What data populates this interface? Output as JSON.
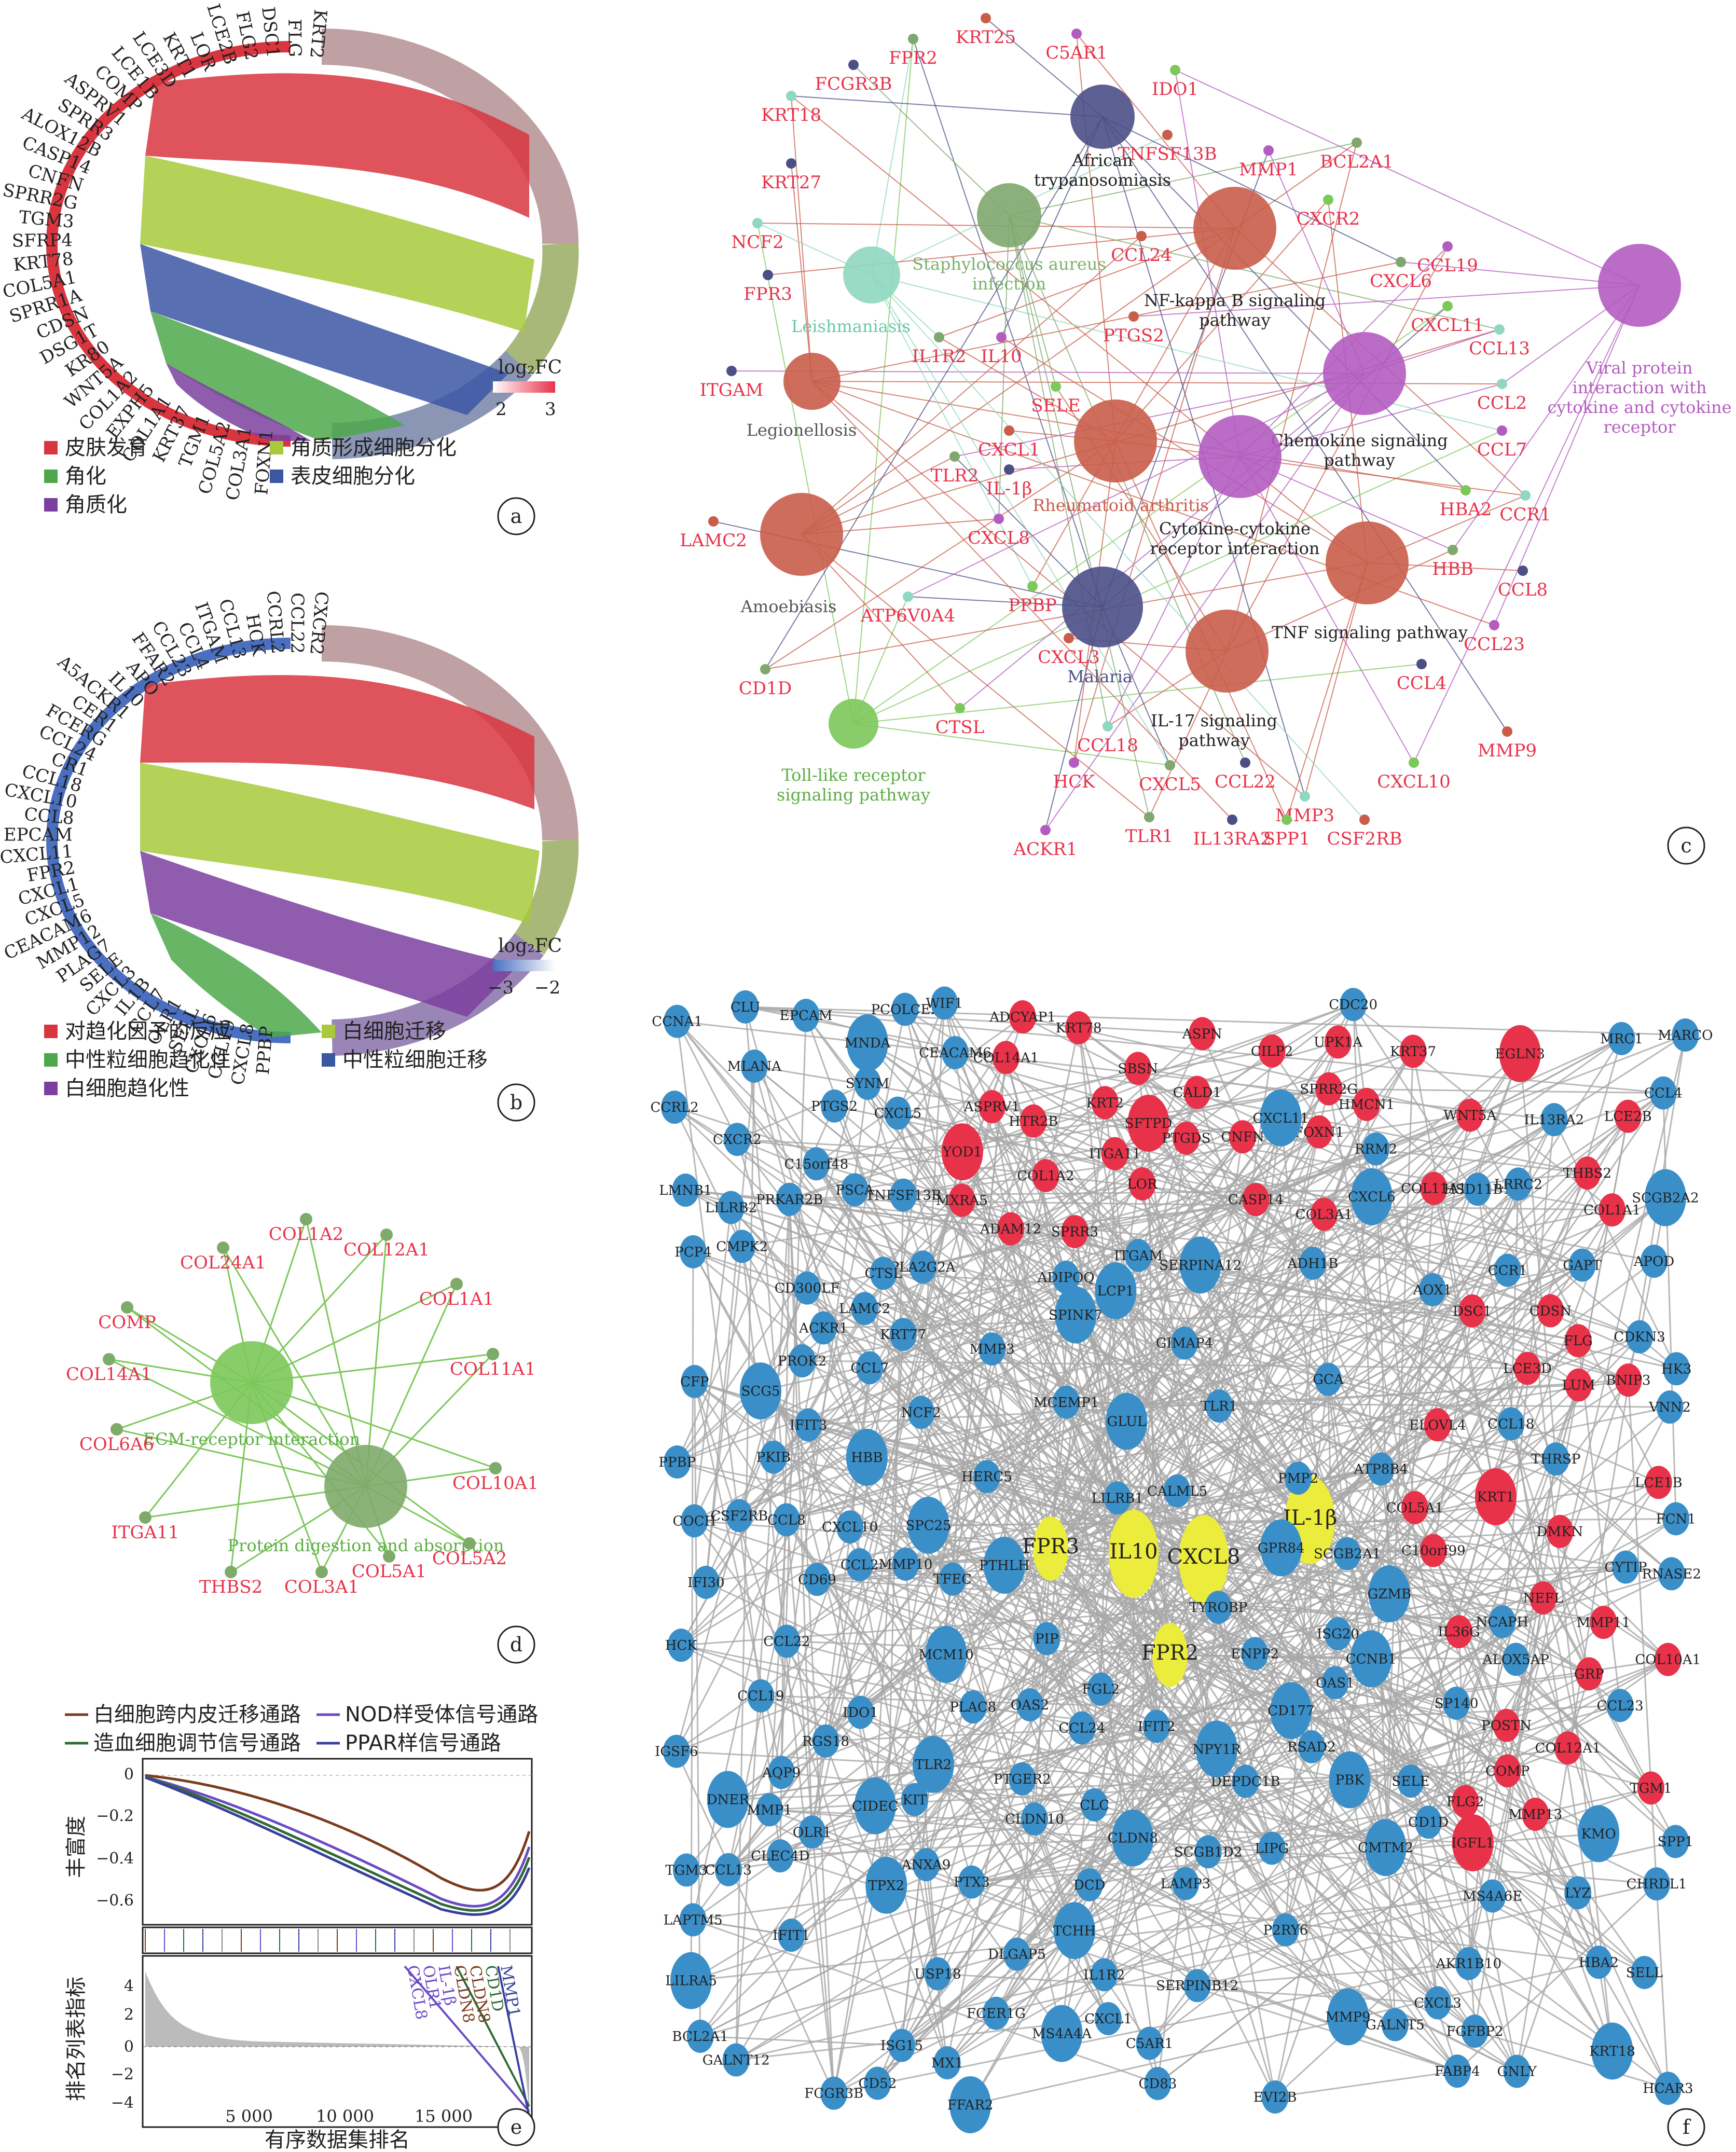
{
  "panels": {
    "a": {
      "letter": "a",
      "genes": [
        "KRT2",
        "FLG",
        "DSC1",
        "FLG2",
        "LCE2B",
        "LOR",
        "KRT1",
        "LCE3D",
        "LCE1B",
        "COMP",
        "ASPRV1",
        "SPRR3",
        "ALOX12B",
        "CASP14",
        "CNFN",
        "SPRR2G",
        "TGM3",
        "SFRP4",
        "KRT78",
        "COL5A1",
        "SPRR1A",
        "CDSN",
        "DSG1T",
        "KR80",
        "WNT5A",
        "COL1A2",
        "EXPH5",
        "COL1A1",
        "KRT37",
        "TGM1",
        "COL5A2",
        "COL3A1",
        "FOXN1"
      ],
      "colorbar_title": "log₂FC",
      "colorbar_ticks": [
        "2",
        "3"
      ],
      "legend": [
        {
          "label": "皮肤发育",
          "color": "#d8353f"
        },
        {
          "label": "角质形成细胞分化",
          "color": "#a7c93b"
        },
        {
          "label": "角化",
          "color": "#4ea84b"
        },
        {
          "label": "表皮细胞分化",
          "color": "#3b57a4"
        },
        {
          "label": "角质化",
          "color": "#7b3fa0"
        }
      ]
    },
    "b": {
      "letter": "b",
      "genes": [
        "CXCR2",
        "CCL22",
        "CCRL2",
        "HCK",
        "CCL13",
        "ITGAM",
        "CCL4",
        "CCL23",
        "FFAR2",
        "APO",
        "IL10",
        "A5ACKR1",
        "CER1",
        "FCERG",
        "CCL24",
        "CR1",
        "CCL18",
        "CXCL10",
        "CCL8",
        "EPCAM",
        "CXCL11",
        "FPR2",
        "CXCL1",
        "CXCL5",
        "CEACAM6",
        "MMP12",
        "PLAG7",
        "SELE",
        "CXCL3",
        "IL1B",
        "CCL7",
        "OLR1",
        "SELL",
        "CXCL6",
        "CCL19",
        "CXCL8",
        "PPBP"
      ],
      "colorbar_title": "log₂FC",
      "colorbar_ticks": [
        "−3",
        "−2"
      ],
      "legend": [
        {
          "label": "对趋化因子的反应",
          "color": "#d8353f"
        },
        {
          "label": "白细胞迁移",
          "color": "#a7c93b"
        },
        {
          "label": "中性粒细胞趋化性",
          "color": "#4ea84b"
        },
        {
          "label": "中性粒细胞迁移",
          "color": "#3b57a4"
        },
        {
          "label": "白细胞趋化性",
          "color": "#7b3fa0"
        }
      ]
    },
    "c": {
      "letter": "c",
      "pathways": [
        "African trypanosomiasis",
        "Staphylococcus aureus infection",
        "Leishmaniasis",
        "Legionellosis",
        "Amoebiasis",
        "NF-kappa B signaling pathway",
        "Viral protein interaction with cytokine and cytokine receptor",
        "Chemokine signaling pathway",
        "Rheumatoid arthritis",
        "Cytokine-cytokine receptor interaction",
        "Malaria",
        "TNF signaling pathway",
        "IL-17 signaling pathway",
        "Toll-like receptor signaling pathway"
      ],
      "genes": [
        "KRT25",
        "C5AR1",
        "FPR2",
        "FCGR3B",
        "IDO1",
        "KRT18",
        "TNFSF13B",
        "MMP1",
        "BCL2A1",
        "KRT27",
        "CXCR2",
        "NCF2",
        "CCL24",
        "CCL19",
        "CXCL6",
        "FPR3",
        "CXCL11",
        "CCL13",
        "PTGS2",
        "IL10",
        "IL1R2",
        "ITGAM",
        "SELE",
        "CCL2",
        "CXCL1",
        "CCL7",
        "TLR2",
        "IL-1β",
        "HBA2",
        "CCR1",
        "LAMC2",
        "CXCL8",
        "HBB",
        "CCL8",
        "PPBP",
        "ATP6V0A4",
        "CXCL3",
        "CCL23",
        "CD1D",
        "CCL4",
        "CTSL",
        "CCL18",
        "MMP9",
        "HCK",
        "CXCL5",
        "CCL22",
        "CXCL10",
        "MMP3",
        "CSF2RB",
        "ACKR1",
        "TLR1",
        "IL13RA2",
        "SPP1"
      ]
    },
    "d": {
      "letter": "d",
      "pathways": [
        "ECM-receptor interaction",
        "Protein digestion and absorption"
      ],
      "genes": [
        "COL24A1",
        "COL1A2",
        "COL12A1",
        "COMP",
        "COL1A1",
        "COL14A1",
        "COL11A1",
        "COL6A6",
        "COL10A1",
        "ITGA11",
        "COL5A2",
        "THBS2",
        "COL3A1",
        "COL5A1"
      ]
    },
    "e": {
      "letter": "e",
      "legend": [
        {
          "label": "白细胞跨内皮迁移通路",
          "color": "#7a3b1e"
        },
        {
          "label": "NOD样受体信号通路",
          "color": "#6a4bc4"
        },
        {
          "label": "造血细胞调节信号通路",
          "color": "#2f6b34"
        },
        {
          "label": "PPAR样信号通路",
          "color": "#3a3f9c"
        }
      ],
      "ylabel_top": "丰富度",
      "ylabel_bottom": "排名列表指标",
      "xlabel": "有序数据集排名",
      "x_ticks": [
        "5 000",
        "10 000",
        "15 000"
      ],
      "y_ticks_top": [
        "0",
        "−0.2",
        "−0.4",
        "−0.6"
      ],
      "y_ticks_bottom": [
        "4",
        "2",
        "0",
        "−2",
        "−4"
      ],
      "gene_labels": [
        "CXCL8",
        "OLR1",
        "IL-1β",
        "CLDN8",
        "CLDN8",
        "CD1D",
        "MMP1"
      ]
    },
    "f": {
      "letter": "f",
      "hub_genes": [
        "FPR3",
        "IL10",
        "CXCL8",
        "IL-1β",
        "FPR2"
      ],
      "red_nodes": [
        "UPK1A",
        "DMKN",
        "FLG",
        "KRT37",
        "KRT78",
        "C10orf99",
        "CNFN",
        "SPRR3",
        "SPRR2G",
        "KRT1",
        "FLG2",
        "HMCN1",
        "ELOVL4",
        "ASPRV1",
        "LCE1B",
        "CASP14",
        "SBSN",
        "LOR",
        "TGM1",
        "CDSN",
        "KRT2",
        "IGFL1",
        "LCE2B",
        "LCE3D",
        "DSC1",
        "GRP",
        "EGLN3",
        "BNIP3",
        "SFTPD",
        "HTR2B",
        "WNT5A",
        "THBS2",
        "ASPN",
        "COL14A1",
        "COL3A1",
        "MMP13",
        "COL1A1",
        "COL11A1",
        "COL10A1",
        "ADAM12",
        "POSTN",
        "COL5A1",
        "LUM",
        "COMP",
        "COL1A2",
        "ITGA11",
        "COL12A1",
        "PTGDS",
        "NEFL",
        "CALD1",
        "CILP2",
        "IL36G",
        "ADCYAP1",
        "YOD1",
        "MXRA5",
        "MMP11",
        "FOXN1"
      ],
      "blue_nodes": [
        "SCG5",
        "C15orf48",
        "PKIB",
        "SERPINB12",
        "CLDN10",
        "ANXA9",
        "PMP2",
        "IL13RA2",
        "CIDEC",
        "CLDN8",
        "SPINK7",
        "CALML5",
        "TGM3",
        "CMTM2",
        "CHRDL1",
        "KRT77",
        "THRSP",
        "HSD11B1",
        "ENPP2",
        "GLUL",
        "SERPINA12",
        "PLA2G2A",
        "KIT",
        "TCHH",
        "EPCAM",
        "CCNA1",
        "FFAR2",
        "PCP4",
        "SPC25",
        "DEPDC1B",
        "CDKN3",
        "PBK",
        "PROK2",
        "FABP4",
        "TNFSF13B",
        "PTX3",
        "ADIPOQ",
        "KRT18",
        "MMP3",
        "SPP1",
        "PTGER2",
        "NCAPH",
        "CCNB1",
        "CCL8",
        "CXCL6",
        "PTGS2",
        "PTHLH",
        "P2RY6",
        "CXCR2",
        "CXCL3",
        "SELE",
        "CCRL2",
        "HCAR3",
        "CCL13",
        "MMP9",
        "TPX2",
        "IFIT1",
        "NPY1R",
        "CDC20",
        "HERC5",
        "PRKAR2B",
        "MCM10",
        "ISG15",
        "CCL24",
        "CCL4",
        "CCL22",
        "CXCL1",
        "CCL2",
        "MMP1",
        "CCL23",
        "CFP",
        "DLGAP5",
        "RRM2",
        "LAMP3",
        "GZMB",
        "FGL2",
        "C5AR1",
        "MRC1",
        "SCGB2A2",
        "COCH",
        "CEACAM6",
        "NCF2",
        "MX1",
        "CXCL10",
        "CD83",
        "CXCL5",
        "CCL7",
        "PPBP",
        "IFIT2",
        "IDO1",
        "CCL19",
        "TLR2",
        "SELL",
        "CCL18",
        "ITGAM",
        "IL1R2",
        "OLR1",
        "LYZ",
        "MMP10",
        "CLU",
        "SP140",
        "APOD",
        "CMPK2",
        "LILRA5",
        "VNN2",
        "EVI2B",
        "BCL2A1",
        "LMNB1",
        "AOX1",
        "CD1D",
        "TYROBP",
        "HCK",
        "CSF2RB",
        "CXCL11",
        "CCR1",
        "ACKR1",
        "IGSF6",
        "MS4A6E",
        "KMO",
        "USP18",
        "ADH1B",
        "CLEC4D",
        "IFIT3",
        "TLR1",
        "GAPT",
        "ALOX5AP",
        "CD69",
        "LILRB2",
        "LIPG",
        "GNLY",
        "FCN1",
        "SCGB2A1",
        "FGFBP2",
        "PIP",
        "GALNT5",
        "DCD",
        "OAS2",
        "OAS1",
        "ISG20",
        "AQP9",
        "LAPTM5",
        "CD300LF",
        "FCER1G",
        "MNDA",
        "RNASE2",
        "CTSL",
        "PLAC8",
        "MLANA",
        "LAMC2",
        "SYNM",
        "PSCA",
        "LCP1",
        "RSAD2",
        "ATP8B4",
        "HK3",
        "MS4A4A",
        "CLC",
        "LILRB1",
        "FCGR3B",
        "MCEMP1",
        "RGS18",
        "CD52",
        "TFEC",
        "CYTIP",
        "GPR84",
        "AKR1B10",
        "GCA",
        "IFI30",
        "DNER",
        "CD177",
        "MARCO",
        "GIMAP4",
        "PCOLCE2",
        "GALNT12",
        "LRRC2",
        "HBB",
        "HBA2",
        "SCGB1D2",
        "WIF1"
      ]
    }
  }
}
